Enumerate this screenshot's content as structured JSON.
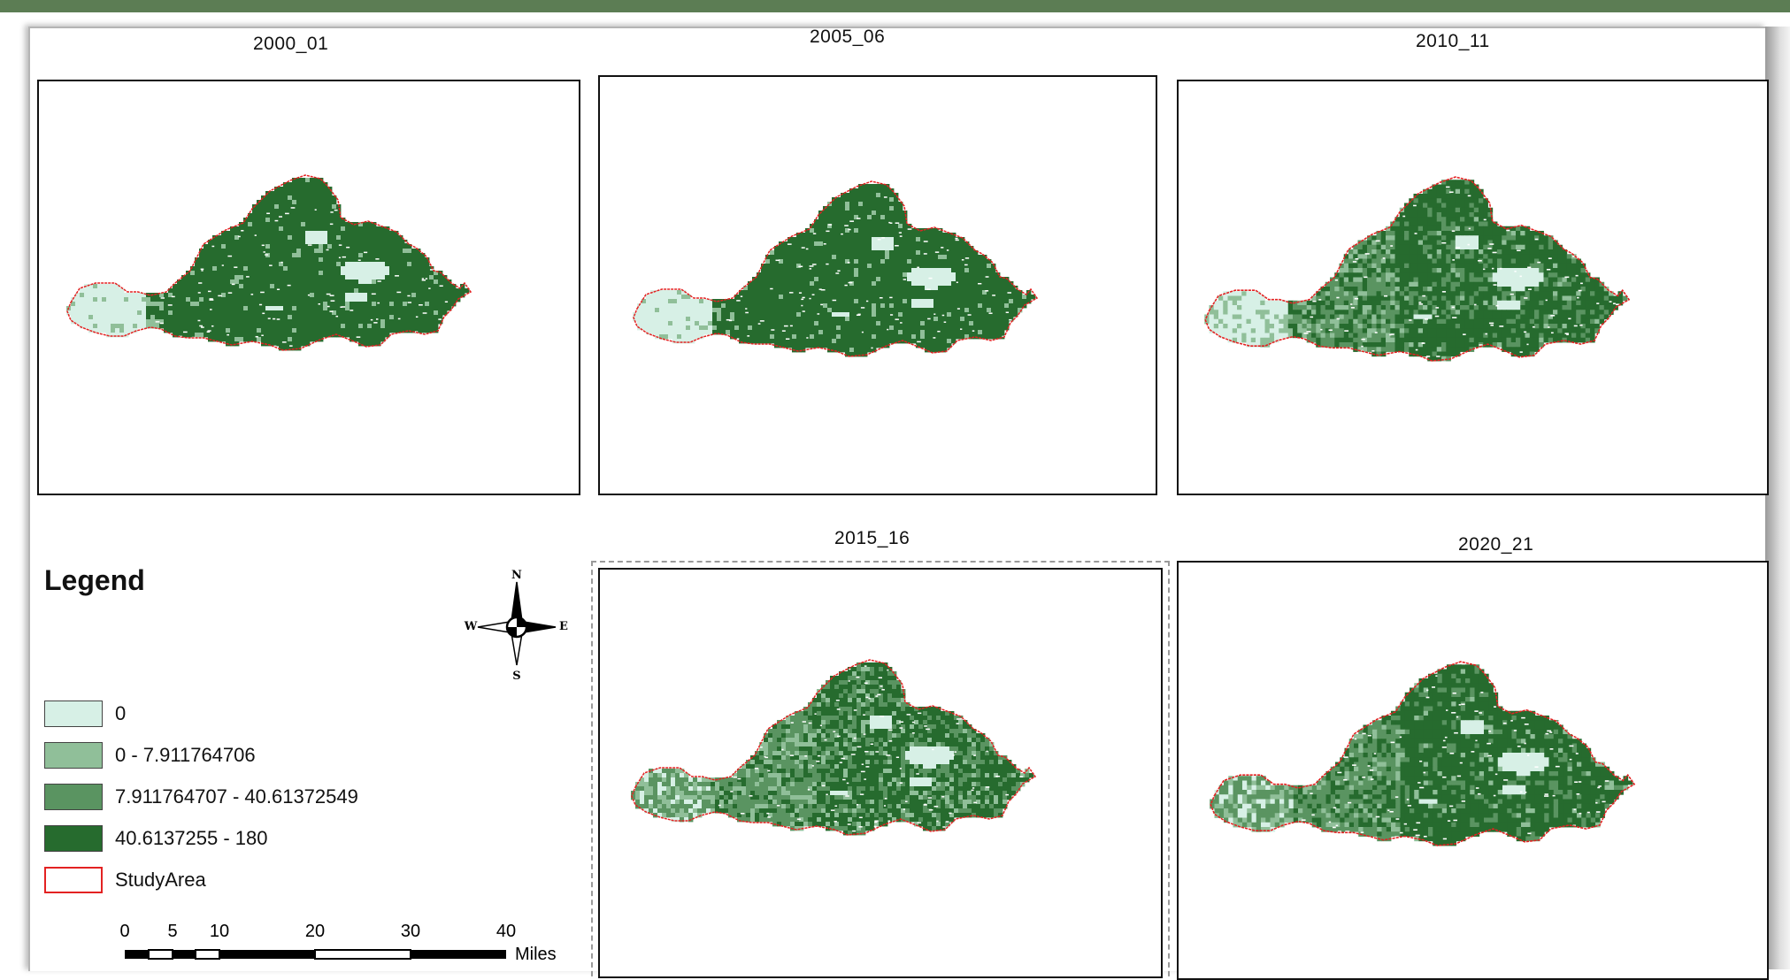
{
  "panels": [
    {
      "title": "2000_01",
      "year_key": "2000"
    },
    {
      "title": "2005_06",
      "year_key": "2005"
    },
    {
      "title": "2010_11",
      "year_key": "2010"
    },
    {
      "title": "2015_16",
      "year_key": "2015"
    },
    {
      "title": "2020_21",
      "year_key": "2020"
    }
  ],
  "legend": {
    "title": "Legend",
    "items": [
      {
        "label": "0",
        "color": "#d7f0e6",
        "outline": false
      },
      {
        "label": "0 - 7.911764706",
        "color": "#90bf99",
        "outline": false
      },
      {
        "label": "7.911764707 - 40.61372549",
        "color": "#5a9461",
        "outline": false
      },
      {
        "label": "40.6137255 - 180",
        "color": "#266b2e",
        "outline": false
      },
      {
        "label": "StudyArea",
        "color": "#ffffff",
        "outline": true,
        "outline_color": "#e32222"
      }
    ]
  },
  "north_arrow": {
    "n": "N",
    "s": "S",
    "e": "E",
    "w": "W"
  },
  "scale_bar": {
    "ticks": [
      "0",
      "5",
      "10",
      "20",
      "30",
      "40"
    ],
    "unit": "Miles"
  },
  "colors": {
    "header_band": "#5c7d54",
    "study_area_outline": "#e32222"
  }
}
